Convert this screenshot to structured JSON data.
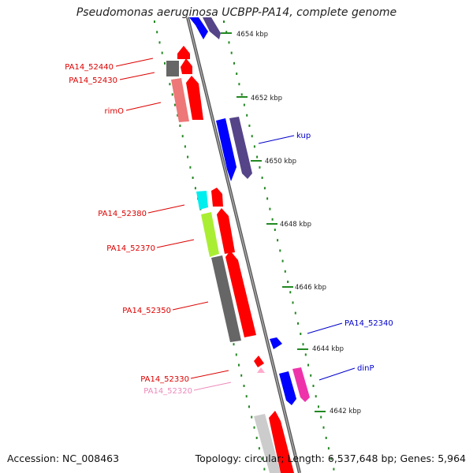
{
  "page": {
    "title": "Pseudomonas aeruginosa UCBPP-PA14, complete genome"
  },
  "kbp_labels": [
    "4654 kbp",
    "4652 kbp",
    "4650 kbp",
    "4648 kbp",
    "4646 kbp",
    "4644 kbp",
    "4642 kbp"
  ],
  "genes_left": [
    {
      "label": "PA14_52440",
      "color": "#dd0000"
    },
    {
      "label": "PA14_52430",
      "color": "#dd0000"
    },
    {
      "label": "rimO",
      "color": "#dd0000"
    },
    {
      "label": "PA14_52380",
      "color": "#dd0000"
    },
    {
      "label": "PA14_52370",
      "color": "#dd0000"
    },
    {
      "label": "PA14_52350",
      "color": "#dd0000"
    },
    {
      "label": "PA14_52330",
      "color": "#dd0000"
    },
    {
      "label": "PA14_52320",
      "color": "#ee88bb"
    }
  ],
  "genes_right": [
    {
      "label": "kup",
      "color": "#0000cc"
    },
    {
      "label": "PA14_52340",
      "color": "#0000cc"
    },
    {
      "label": "dinP",
      "color": "#0000cc"
    }
  ],
  "footer": {
    "accession": "Accession: NC_008463",
    "stats": "Topology: circular; Length: 6,537,648 bp; Genes: 5,964"
  },
  "colors": {
    "backbone": "#888888",
    "dots": "#228822",
    "forward_strand": "#ff0000",
    "reverse_strand": "#0000ff",
    "cog_purple": "#554488",
    "cog_gray": "#666666",
    "cog_light_red": "#ee7777",
    "cog_cyan": "#00eeee",
    "cog_lime": "#aaee33",
    "cog_light_gray": "#cccccc",
    "cog_magenta": "#ee33aa",
    "pink": "#ffaacc"
  }
}
